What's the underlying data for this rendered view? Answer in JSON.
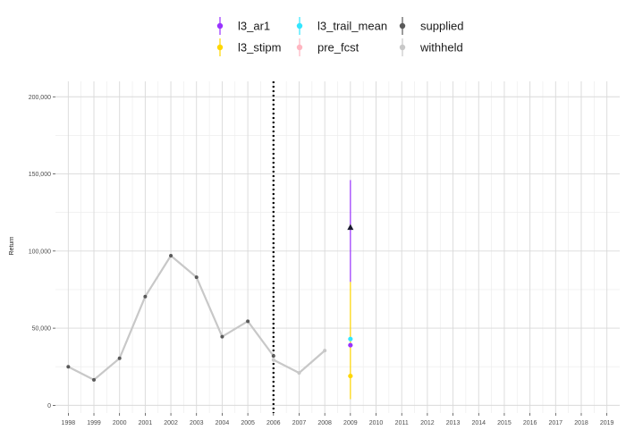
{
  "chart_data": {
    "type": "line",
    "ylabel": "Return",
    "xlabel": "",
    "ylim": [
      -5000,
      210000
    ],
    "xlim": [
      1997.5,
      2019.5
    ],
    "x_ticks": [
      1998,
      1999,
      2000,
      2001,
      2002,
      2003,
      2004,
      2005,
      2006,
      2007,
      2008,
      2009,
      2010,
      2011,
      2012,
      2013,
      2014,
      2015,
      2016,
      2017,
      2018,
      2019
    ],
    "y_ticks": [
      {
        "value": 0,
        "label": "0"
      },
      {
        "value": 50000,
        "label": "50,000"
      },
      {
        "value": 100000,
        "label": "100,000"
      },
      {
        "value": 150000,
        "label": "150,000"
      },
      {
        "value": 200000,
        "label": "200,000"
      }
    ],
    "grid": true,
    "legend_position": "top",
    "cutoff_year": 2006,
    "legend": [
      {
        "label": "l3_ar1",
        "color": "#9933FF"
      },
      {
        "label": "l3_stipm",
        "color": "#FFD700"
      },
      {
        "label": "l3_trail_mean",
        "color": "#33E6FF"
      },
      {
        "label": "pre_fcst",
        "color": "#FFB6C1"
      },
      {
        "label": "supplied",
        "color": "#595959"
      },
      {
        "label": "withheld",
        "color": "#C8C8C8"
      }
    ],
    "series": [
      {
        "name": "supplied",
        "color": "#595959",
        "x": [
          1998,
          1999,
          2000,
          2001,
          2002,
          2003,
          2004,
          2005,
          2006
        ],
        "y": [
          25000,
          16500,
          30500,
          70500,
          97000,
          83000,
          44500,
          54500,
          32000
        ]
      },
      {
        "name": "withheld",
        "color": "#C8C8C8",
        "x": [
          2006,
          2007,
          2008
        ],
        "y": [
          29500,
          21000,
          35500
        ]
      }
    ],
    "forecasts": [
      {
        "name": "l3_ar1",
        "color": "#9933FF",
        "x": 2009,
        "y": 39000,
        "lo": 80000,
        "hi": 146000
      },
      {
        "name": "l3_stipm",
        "color": "#FFD700",
        "x": 2009,
        "y": 19000,
        "lo": 4000,
        "hi": 80000
      },
      {
        "name": "l3_trail_mean",
        "color": "#33E6FF",
        "x": 2009,
        "y": 43000,
        "lo": 43000,
        "hi": 43000
      }
    ],
    "actual_marker": {
      "x": 2009,
      "y": 115500,
      "color": "#1a1a2e"
    }
  }
}
